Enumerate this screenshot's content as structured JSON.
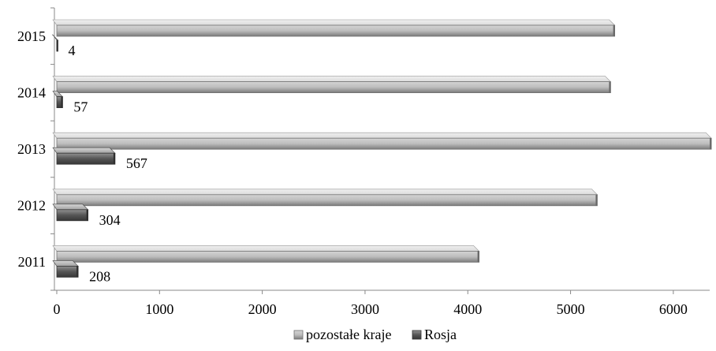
{
  "chart_data": {
    "type": "bar",
    "orientation": "horizontal",
    "style": "3d",
    "categories": [
      "2011",
      "2012",
      "2013",
      "2014",
      "2015"
    ],
    "series": [
      {
        "name": "pozostałe kraje",
        "values": [
          4110,
          5260,
          6370,
          5390,
          5430
        ],
        "color": "#bdbdbd",
        "data_labels": false
      },
      {
        "name": "Rosja",
        "values": [
          208,
          304,
          567,
          57,
          4
        ],
        "color": "#555555",
        "data_labels": true
      }
    ],
    "x_ticks": [
      "0",
      "1000",
      "2000",
      "3000",
      "4000",
      "5000",
      "6000"
    ],
    "xlim": [
      0,
      6400
    ],
    "grid": false,
    "legend": {
      "position": "bottom"
    }
  }
}
